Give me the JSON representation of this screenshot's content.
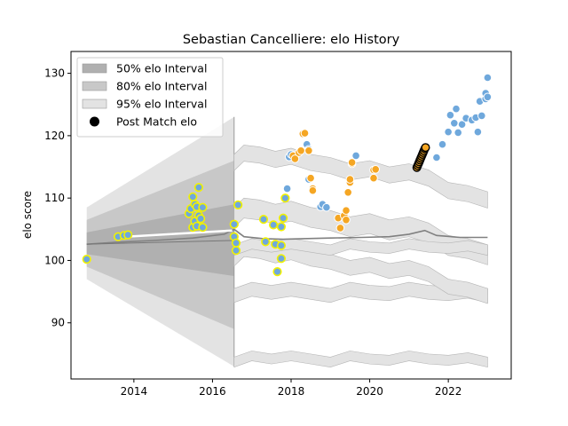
{
  "chart_data": {
    "type": "scatter",
    "title": "Sebastian Cancelliere: elo History",
    "xlabel": "",
    "ylabel": "elo score",
    "xlim": [
      2012.4,
      2023.6
    ],
    "ylim": [
      81,
      133.5
    ],
    "xticks": [
      {
        "value": 2014,
        "label": "2014"
      },
      {
        "value": 2016,
        "label": "2016"
      },
      {
        "value": 2018,
        "label": "2018"
      },
      {
        "value": 2020,
        "label": "2020"
      },
      {
        "value": 2022,
        "label": "2022"
      }
    ],
    "yticks": [
      {
        "value": 90,
        "label": "90"
      },
      {
        "value": 100,
        "label": "100"
      },
      {
        "value": 110,
        "label": "110"
      },
      {
        "value": 120,
        "label": "120"
      },
      {
        "value": 130,
        "label": "130"
      }
    ],
    "grid": false,
    "legend_position": "upper left",
    "legend": [
      {
        "label": "50% elo Interval",
        "kind": "band",
        "color": "#b0b0b0"
      },
      {
        "label": "80% elo Interval",
        "kind": "band",
        "color": "#c8c8c8"
      },
      {
        "label": "95% elo Interval",
        "kind": "band",
        "color": "#e3e3e3"
      },
      {
        "label": "Post Match elo",
        "kind": "marker",
        "color": "#000000"
      }
    ],
    "colors": {
      "yellow_fill": "#b5cf3a",
      "yellow_edge": "#f2f200",
      "blue_fill": "#6fa8dc",
      "orange_fill": "#f5a623",
      "orange_edge": "#ffffff",
      "dark_edge": "#000000",
      "mean_line": "#808080"
    },
    "bands": {
      "early": {
        "x": [
          2012.8,
          2016.55
        ],
        "p50": {
          "upper": [
            104.5,
            109.0
          ],
          "lower": [
            101.0,
            97.5
          ]
        },
        "p80": {
          "upper": [
            106.5,
            116.0
          ],
          "lower": [
            99.0,
            89.0
          ]
        },
        "p95": {
          "upper": [
            108.5,
            123.0
          ],
          "lower": [
            97.0,
            83.0
          ]
        }
      },
      "late_upper": [
        [
          2016.55,
          117
        ],
        [
          2016.8,
          118.5
        ],
        [
          2017.2,
          118.2
        ],
        [
          2017.6,
          117.5
        ],
        [
          2018.0,
          118.0
        ],
        [
          2018.5,
          117.0
        ],
        [
          2019.0,
          116.5
        ],
        [
          2019.5,
          115.5
        ],
        [
          2020.0,
          116.0
        ],
        [
          2020.5,
          115.0
        ],
        [
          2021.0,
          115.5
        ],
        [
          2021.5,
          114.5
        ],
        [
          2022.0,
          112.5
        ],
        [
          2022.5,
          112.0
        ],
        [
          2023.0,
          111.0
        ]
      ],
      "late_lower": [
        [
          2016.55,
          84.5
        ],
        [
          2017.0,
          85.5
        ],
        [
          2017.5,
          85.0
        ],
        [
          2018.0,
          85.5
        ],
        [
          2018.5,
          85.0
        ],
        [
          2019.0,
          84.5
        ],
        [
          2019.5,
          85.5
        ],
        [
          2020.0,
          85.0
        ],
        [
          2020.5,
          84.8
        ],
        [
          2021.0,
          85.5
        ],
        [
          2021.5,
          85.0
        ],
        [
          2022.0,
          84.8
        ],
        [
          2022.5,
          85.2
        ],
        [
          2023.0,
          84.5
        ]
      ]
    },
    "mean_line": [
      [
        2012.8,
        102.6
      ],
      [
        2013.5,
        102.9
      ],
      [
        2014.5,
        103.2
      ],
      [
        2015.5,
        103.6
      ],
      [
        2016.3,
        104.2
      ],
      [
        2016.55,
        105.0
      ],
      [
        2016.8,
        103.8
      ],
      [
        2017.3,
        103.5
      ],
      [
        2017.8,
        103.4
      ],
      [
        2018.3,
        103.5
      ],
      [
        2019.0,
        103.6
      ],
      [
        2019.8,
        103.7
      ],
      [
        2020.5,
        103.8
      ],
      [
        2021.0,
        104.2
      ],
      [
        2021.4,
        104.8
      ],
      [
        2021.7,
        104.0
      ],
      [
        2022.3,
        103.7
      ],
      [
        2023.0,
        103.7
      ]
    ],
    "series": [
      {
        "key": "yellow",
        "points": [
          [
            2012.8,
            100.2
          ],
          [
            2013.6,
            103.8
          ],
          [
            2013.75,
            104.0
          ],
          [
            2013.85,
            104.1
          ],
          [
            2015.4,
            107.5
          ],
          [
            2015.45,
            108.3
          ],
          [
            2015.5,
            110.2
          ],
          [
            2015.5,
            105.3
          ],
          [
            2015.55,
            109.0
          ],
          [
            2015.55,
            106.3
          ],
          [
            2015.6,
            108.6
          ],
          [
            2015.6,
            105.5
          ],
          [
            2015.65,
            111.7
          ],
          [
            2015.65,
            107.2
          ],
          [
            2015.7,
            106.7
          ],
          [
            2015.75,
            108.5
          ],
          [
            2015.75,
            105.3
          ],
          [
            2016.55,
            105.8
          ],
          [
            2016.55,
            103.8
          ],
          [
            2016.6,
            102.8
          ],
          [
            2016.6,
            101.6
          ],
          [
            2016.65,
            108.9
          ],
          [
            2017.3,
            106.6
          ],
          [
            2017.35,
            103.0
          ],
          [
            2017.55,
            105.7
          ],
          [
            2017.6,
            102.6
          ],
          [
            2017.65,
            98.2
          ],
          [
            2017.75,
            102.4
          ],
          [
            2017.75,
            100.3
          ],
          [
            2017.75,
            105.4
          ],
          [
            2017.8,
            106.8
          ],
          [
            2017.85,
            110.0
          ]
        ]
      },
      {
        "key": "blue",
        "points": [
          [
            2017.9,
            111.5
          ],
          [
            2017.95,
            116.6
          ],
          [
            2018.0,
            117.0
          ],
          [
            2018.4,
            118.6
          ],
          [
            2018.45,
            117.8
          ],
          [
            2018.45,
            113.0
          ],
          [
            2018.75,
            108.6
          ],
          [
            2018.8,
            109.0
          ],
          [
            2018.9,
            108.5
          ],
          [
            2019.65,
            116.8
          ],
          [
            2021.7,
            116.5
          ],
          [
            2021.85,
            118.6
          ],
          [
            2022.0,
            120.6
          ],
          [
            2022.05,
            123.3
          ],
          [
            2022.15,
            122.0
          ],
          [
            2022.2,
            124.3
          ],
          [
            2022.25,
            120.5
          ],
          [
            2022.35,
            121.8
          ],
          [
            2022.45,
            122.8
          ],
          [
            2022.6,
            122.5
          ],
          [
            2022.7,
            122.9
          ],
          [
            2022.75,
            120.6
          ],
          [
            2022.8,
            125.5
          ],
          [
            2022.85,
            123.2
          ],
          [
            2022.95,
            125.9
          ],
          [
            2022.95,
            126.8
          ],
          [
            2023.0,
            129.3
          ],
          [
            2023.0,
            126.2
          ]
        ]
      },
      {
        "key": "orange",
        "points": [
          [
            2018.05,
            116.8
          ],
          [
            2018.1,
            116.3
          ],
          [
            2018.2,
            117.3
          ],
          [
            2018.25,
            117.6
          ],
          [
            2018.3,
            120.3
          ],
          [
            2018.35,
            120.4
          ],
          [
            2018.45,
            117.6
          ],
          [
            2018.5,
            113.2
          ],
          [
            2018.55,
            111.5
          ],
          [
            2018.55,
            111.2
          ],
          [
            2019.2,
            106.8
          ],
          [
            2019.25,
            105.2
          ],
          [
            2019.35,
            107.2
          ],
          [
            2019.4,
            108.0
          ],
          [
            2019.4,
            106.5
          ],
          [
            2019.45,
            110.9
          ],
          [
            2019.5,
            112.5
          ],
          [
            2019.5,
            113.0
          ],
          [
            2019.55,
            115.5
          ],
          [
            2019.55,
            115.7
          ],
          [
            2020.1,
            114.5
          ],
          [
            2020.1,
            113.2
          ],
          [
            2020.15,
            114.6
          ]
        ]
      },
      {
        "key": "dark",
        "points": [
          [
            2021.2,
            114.9
          ],
          [
            2021.22,
            115.2
          ],
          [
            2021.24,
            115.5
          ],
          [
            2021.26,
            115.8
          ],
          [
            2021.28,
            116.1
          ],
          [
            2021.3,
            116.4
          ],
          [
            2021.32,
            116.7
          ],
          [
            2021.34,
            117.0
          ],
          [
            2021.36,
            117.3
          ],
          [
            2021.38,
            117.6
          ],
          [
            2021.4,
            117.9
          ],
          [
            2021.42,
            118.1
          ]
        ]
      }
    ]
  }
}
